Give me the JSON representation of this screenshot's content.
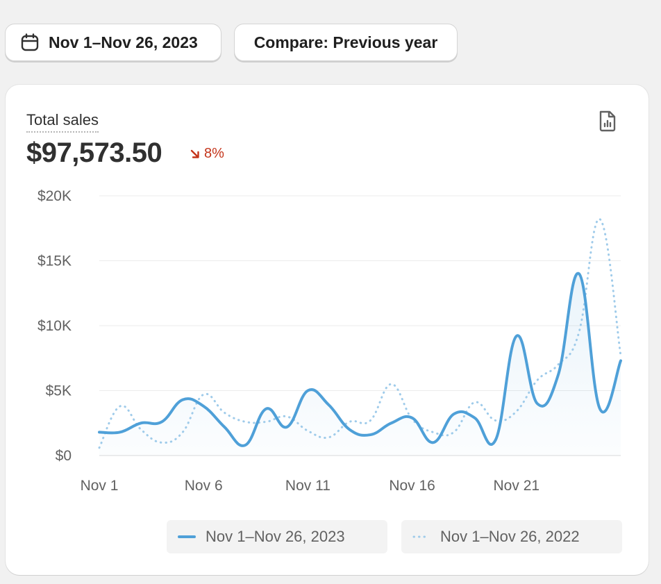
{
  "filters": {
    "date_range_label": "Nov 1–Nov 26, 2023",
    "compare_label": "Compare: Previous year"
  },
  "card": {
    "title": "Total sales",
    "total_value": "$97,573.50",
    "change_percent": "8%",
    "change_direction": "down"
  },
  "colors": {
    "current": "#4fa0d8",
    "previous": "#9fcbea",
    "negative": "#c4341a"
  },
  "chart_data": {
    "type": "line",
    "title": "",
    "xlabel": "",
    "ylabel": "",
    "x": [
      1,
      2,
      3,
      4,
      5,
      6,
      7,
      8,
      9,
      10,
      11,
      12,
      13,
      14,
      15,
      16,
      17,
      18,
      19,
      20,
      21,
      22,
      23,
      24,
      25,
      26
    ],
    "x_tick_labels": [
      {
        "day": 1,
        "label": "Nov 1"
      },
      {
        "day": 6,
        "label": "Nov 6"
      },
      {
        "day": 11,
        "label": "Nov 11"
      },
      {
        "day": 16,
        "label": "Nov 16"
      },
      {
        "day": 21,
        "label": "Nov 21"
      }
    ],
    "y_tick_labels": [
      {
        "value": 0,
        "label": "$0"
      },
      {
        "value": 5000,
        "label": "$5K"
      },
      {
        "value": 10000,
        "label": "$10K"
      },
      {
        "value": 15000,
        "label": "$15K"
      },
      {
        "value": 20000,
        "label": "$20K"
      }
    ],
    "ylim": [
      0,
      20000
    ],
    "xlim": [
      1,
      26
    ],
    "grid": true,
    "legend_position": "bottom-right",
    "series": [
      {
        "name": "Nov 1–Nov 26, 2023",
        "style": "solid",
        "values": [
          1800,
          1800,
          2500,
          2600,
          4300,
          3800,
          2200,
          800,
          3600,
          2200,
          5000,
          3900,
          2000,
          1600,
          2500,
          2900,
          1000,
          3200,
          2900,
          1200,
          9200,
          4000,
          6200,
          14000,
          3600,
          7300
        ]
      },
      {
        "name": "Nov 1–Nov 26, 2022",
        "style": "dotted",
        "values": [
          600,
          3800,
          2000,
          1000,
          1800,
          4700,
          3300,
          2600,
          2600,
          3000,
          1900,
          1400,
          2600,
          2700,
          5500,
          2800,
          1800,
          1800,
          4100,
          2700,
          3400,
          5800,
          7000,
          9500,
          18200,
          7700
        ]
      }
    ]
  }
}
